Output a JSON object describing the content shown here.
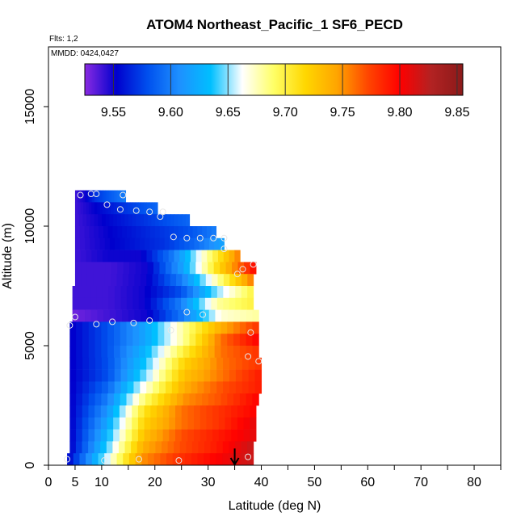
{
  "chart_data": {
    "type": "heatmap",
    "title": "ATOM4 Northeast_Pacific_1 SF6_PECD",
    "flights_label": "Flts: 1,2",
    "dates_label": "MMDD: 0424,0427",
    "xlabel": "Latitude (deg N)",
    "ylabel": "Altitude (m)",
    "xlim": [
      0,
      85
    ],
    "ylim": [
      0,
      17500
    ],
    "x_ticks": [
      0,
      5,
      10,
      20,
      30,
      40,
      50,
      60,
      70,
      80
    ],
    "x_minor_ticks": [
      15,
      25,
      35,
      45,
      55,
      65,
      75,
      85
    ],
    "y_ticks": [
      0,
      5000,
      10000,
      15000
    ],
    "colorbar": {
      "min": 9.525,
      "max": 9.855,
      "ticks": [
        9.55,
        9.6,
        9.65,
        9.7,
        9.75,
        9.8,
        9.85
      ],
      "tick_labels": [
        "9.55",
        "9.60",
        "9.65",
        "9.70",
        "9.75",
        "9.80",
        "9.85"
      ]
    },
    "colorscale": [
      "#8a2be2",
      "#0000cd",
      "#0050ee",
      "#1e90ff",
      "#00bfff",
      "#ffffff",
      "#ffff66",
      "#ffd700",
      "#ffa500",
      "#ff4500",
      "#ff0000",
      "#b22222",
      "#8b1a1a"
    ],
    "curtain_rows": [
      {
        "alt": [
          11000,
          11500
        ],
        "lat": [
          5,
          14.5
        ],
        "values": [
          9.54,
          9.55,
          9.57,
          9.58,
          9.59,
          9.6
        ]
      },
      {
        "alt": [
          10500,
          11000
        ],
        "lat": [
          5,
          20.5
        ],
        "values": [
          9.54,
          9.55,
          9.56,
          9.57,
          9.58,
          9.59
        ]
      },
      {
        "alt": [
          10000,
          10500
        ],
        "lat": [
          5,
          26.5
        ],
        "values": [
          9.54,
          9.55,
          9.56,
          9.57,
          9.58,
          9.59
        ]
      },
      {
        "alt": [
          9500,
          10000
        ],
        "lat": [
          5,
          31.5
        ],
        "values": [
          9.54,
          9.55,
          9.56,
          9.57,
          9.58,
          9.6
        ]
      },
      {
        "alt": [
          9000,
          9500
        ],
        "lat": [
          5,
          33
        ],
        "values": [
          9.54,
          9.55,
          9.56,
          9.57,
          9.59,
          9.62
        ]
      },
      {
        "alt": [
          8500,
          9000
        ],
        "lat": [
          5,
          36
        ],
        "values": [
          9.54,
          9.55,
          9.55,
          9.6,
          9.68,
          9.76
        ]
      },
      {
        "alt": [
          8000,
          8500
        ],
        "lat": [
          5,
          39
        ],
        "values": [
          9.54,
          9.54,
          9.55,
          9.62,
          9.72,
          9.8
        ]
      },
      {
        "alt": [
          7500,
          8000
        ],
        "lat": [
          5,
          38.5
        ],
        "values": [
          9.54,
          9.54,
          9.55,
          9.6,
          9.68,
          9.76
        ]
      },
      {
        "alt": [
          7000,
          7500
        ],
        "lat": [
          4.5,
          38.5
        ],
        "values": [
          9.54,
          9.54,
          9.55,
          9.58,
          9.65,
          9.7
        ]
      },
      {
        "alt": [
          6500,
          7000
        ],
        "lat": [
          4.5,
          38.5
        ],
        "values": [
          9.54,
          9.54,
          9.55,
          9.6,
          9.68,
          9.7
        ]
      },
      {
        "alt": [
          6000,
          6500
        ],
        "lat": [
          4.5,
          39.5
        ],
        "values": [
          9.53,
          9.54,
          9.55,
          9.6,
          9.67,
          9.68
        ]
      },
      {
        "alt": [
          5500,
          6000
        ],
        "lat": [
          4,
          39.5
        ],
        "values": [
          9.55,
          9.58,
          9.62,
          9.68,
          9.74,
          9.78
        ]
      },
      {
        "alt": [
          5000,
          5500
        ],
        "lat": [
          4,
          39.5
        ],
        "values": [
          9.55,
          9.58,
          9.62,
          9.68,
          9.76,
          9.8
        ]
      },
      {
        "alt": [
          4500,
          5000
        ],
        "lat": [
          4,
          39.5
        ],
        "values": [
          9.55,
          9.58,
          9.63,
          9.7,
          9.76,
          9.78
        ]
      },
      {
        "alt": [
          4000,
          4500
        ],
        "lat": [
          4,
          40
        ],
        "values": [
          9.55,
          9.58,
          9.64,
          9.72,
          9.76,
          9.78
        ]
      },
      {
        "alt": [
          3500,
          4000
        ],
        "lat": [
          4,
          40
        ],
        "values": [
          9.55,
          9.58,
          9.65,
          9.73,
          9.76,
          9.79
        ]
      },
      {
        "alt": [
          3000,
          3500
        ],
        "lat": [
          4,
          40
        ],
        "values": [
          9.55,
          9.59,
          9.67,
          9.74,
          9.77,
          9.79
        ]
      },
      {
        "alt": [
          2500,
          3000
        ],
        "lat": [
          4,
          39.5
        ],
        "values": [
          9.55,
          9.6,
          9.69,
          9.75,
          9.77,
          9.8
        ]
      },
      {
        "alt": [
          2000,
          2500
        ],
        "lat": [
          4,
          39
        ],
        "values": [
          9.55,
          9.61,
          9.71,
          9.76,
          9.78,
          9.8
        ]
      },
      {
        "alt": [
          1500,
          2000
        ],
        "lat": [
          4,
          39
        ],
        "values": [
          9.55,
          9.62,
          9.72,
          9.76,
          9.78,
          9.81
        ]
      },
      {
        "alt": [
          1000,
          1500
        ],
        "lat": [
          4,
          39
        ],
        "values": [
          9.55,
          9.63,
          9.73,
          9.77,
          9.79,
          9.81
        ]
      },
      {
        "alt": [
          500,
          1000
        ],
        "lat": [
          4,
          38.5
        ],
        "values": [
          9.55,
          9.64,
          9.74,
          9.77,
          9.79,
          9.82
        ]
      },
      {
        "alt": [
          0,
          500
        ],
        "lat": [
          3.5,
          38.5
        ],
        "values": [
          9.55,
          9.65,
          9.75,
          9.78,
          9.8,
          9.82
        ]
      }
    ],
    "sample_points": [
      {
        "lat": 6,
        "alt": 11300
      },
      {
        "lat": 8,
        "alt": 11350
      },
      {
        "lat": 9,
        "alt": 11350
      },
      {
        "lat": 14,
        "alt": 11300
      },
      {
        "lat": 11,
        "alt": 10900
      },
      {
        "lat": 13.5,
        "alt": 10700
      },
      {
        "lat": 16.5,
        "alt": 10650
      },
      {
        "lat": 19,
        "alt": 10600
      },
      {
        "lat": 21.5,
        "alt": 10600
      },
      {
        "lat": 21,
        "alt": 10400
      },
      {
        "lat": 23.5,
        "alt": 9550
      },
      {
        "lat": 26,
        "alt": 9500
      },
      {
        "lat": 28.5,
        "alt": 9500
      },
      {
        "lat": 31,
        "alt": 9500
      },
      {
        "lat": 33,
        "alt": 9500
      },
      {
        "lat": 33,
        "alt": 9050
      },
      {
        "lat": 35.5,
        "alt": 8000
      },
      {
        "lat": 36.5,
        "alt": 8200
      },
      {
        "lat": 38.5,
        "alt": 8400
      },
      {
        "lat": 5,
        "alt": 6200
      },
      {
        "lat": 4,
        "alt": 5850
      },
      {
        "lat": 9,
        "alt": 5900
      },
      {
        "lat": 12,
        "alt": 6000
      },
      {
        "lat": 16,
        "alt": 5950
      },
      {
        "lat": 19,
        "alt": 6050
      },
      {
        "lat": 23,
        "alt": 5650
      },
      {
        "lat": 26,
        "alt": 6400
      },
      {
        "lat": 29,
        "alt": 6300
      },
      {
        "lat": 38,
        "alt": 5550
      },
      {
        "lat": 37.5,
        "alt": 4550
      },
      {
        "lat": 39.5,
        "alt": 4350
      },
      {
        "lat": 3.5,
        "alt": 250
      },
      {
        "lat": 10.5,
        "alt": 200
      },
      {
        "lat": 17,
        "alt": 250
      },
      {
        "lat": 24.5,
        "alt": 200
      },
      {
        "lat": 37.5,
        "alt": 350
      }
    ],
    "arrow_marker": {
      "lat": 35,
      "alt_top": 700,
      "alt_bottom": 0
    },
    "grid": false
  }
}
